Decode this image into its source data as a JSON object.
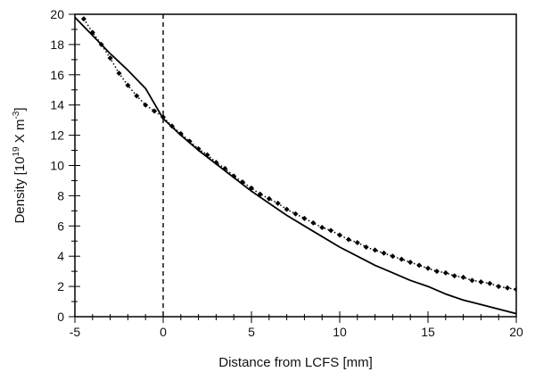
{
  "chart_data": {
    "type": "line",
    "title": "",
    "xlabel": "Distance from LCFS [mm]",
    "ylabel_parts": [
      "Density [10",
      "19",
      " X m",
      "-3",
      "]"
    ],
    "xlim": [
      -5,
      20
    ],
    "ylim": [
      0,
      20
    ],
    "x_ticks": [
      -5,
      0,
      5,
      10,
      15,
      20
    ],
    "y_ticks": [
      0,
      2,
      4,
      6,
      8,
      10,
      12,
      14,
      16,
      18,
      20
    ],
    "x_minor_step": 1,
    "y_minor_step": 1,
    "grid": false,
    "legend": "none",
    "reference_lines": [
      {
        "axis": "x",
        "value": 0,
        "style": "dashed"
      }
    ],
    "series": [
      {
        "style": "solid",
        "color": "#000000",
        "x": [
          -5,
          -4,
          -3,
          -2,
          -1,
          0,
          1,
          2,
          3,
          4,
          5,
          6,
          7,
          8,
          9,
          10,
          11,
          12,
          13,
          14,
          15,
          16,
          17,
          18,
          19,
          20
        ],
        "y": [
          19.8,
          18.6,
          17.4,
          16.3,
          15.1,
          13.1,
          12.0,
          11.0,
          10.1,
          9.2,
          8.3,
          7.5,
          6.7,
          6.0,
          5.3,
          4.6,
          4.0,
          3.4,
          2.9,
          2.4,
          2.0,
          1.5,
          1.1,
          0.8,
          0.5,
          0.2
        ]
      },
      {
        "style": "dotted-markers",
        "color": "#000000",
        "x": [
          -4.5,
          -4.0,
          -3.5,
          -3.0,
          -2.5,
          -2.0,
          -1.5,
          -1.0,
          -0.5,
          0.0,
          0.5,
          1.0,
          1.5,
          2.0,
          2.5,
          3.0,
          3.5,
          4.0,
          4.5,
          5.0,
          5.5,
          6.0,
          6.5,
          7.0,
          7.5,
          8.0,
          8.5,
          9.0,
          9.5,
          10.0,
          10.5,
          11.0,
          11.5,
          12.0,
          12.5,
          13.0,
          13.5,
          14.0,
          14.5,
          15.0,
          15.5,
          16.0,
          16.5,
          17.0,
          17.5,
          18.0,
          18.5,
          19.0,
          19.5,
          20.0
        ],
        "y": [
          19.7,
          18.8,
          18.0,
          17.1,
          16.1,
          15.3,
          14.6,
          14.0,
          13.6,
          13.2,
          12.6,
          12.1,
          11.6,
          11.1,
          10.7,
          10.2,
          9.8,
          9.3,
          8.9,
          8.5,
          8.1,
          7.8,
          7.5,
          7.1,
          6.8,
          6.5,
          6.2,
          5.9,
          5.7,
          5.4,
          5.1,
          4.9,
          4.6,
          4.4,
          4.2,
          4.0,
          3.8,
          3.6,
          3.4,
          3.2,
          3.0,
          2.9,
          2.7,
          2.6,
          2.4,
          2.3,
          2.2,
          2.0,
          1.9,
          1.8
        ]
      }
    ]
  }
}
